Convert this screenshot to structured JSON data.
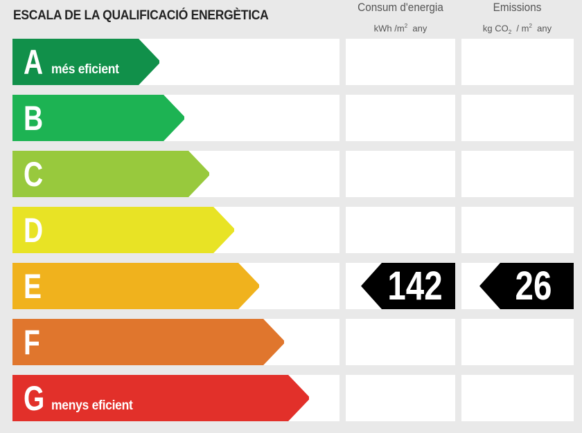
{
  "title": "ESCALA DE LA QUALIFICACIÓ ENERGÈTICA",
  "columns": {
    "consum": {
      "label": "Consum d'energia",
      "unit_prefix": "kWh /m",
      "unit_sup": "2",
      "unit_suffix": "any"
    },
    "emissions": {
      "label": "Emissions",
      "unit_prefix": "kg CO",
      "unit_sub": "2",
      "unit_mid": "/ m",
      "unit_sup": "2",
      "unit_suffix": "any"
    }
  },
  "rating_classes": [
    {
      "letter": "A",
      "caption": "més eficient",
      "color": "#11904a"
    },
    {
      "letter": "B",
      "caption": "",
      "color": "#1db353"
    },
    {
      "letter": "C",
      "caption": "",
      "color": "#98c93d"
    },
    {
      "letter": "D",
      "caption": "",
      "color": "#e8e325"
    },
    {
      "letter": "E",
      "caption": "",
      "color": "#f0b21d"
    },
    {
      "letter": "F",
      "caption": "",
      "color": "#e0762d"
    },
    {
      "letter": "G",
      "caption": "menys eficient",
      "color": "#e2302a"
    }
  ],
  "current_rating": "E",
  "values": {
    "consum": "142",
    "emissions": "26"
  }
}
